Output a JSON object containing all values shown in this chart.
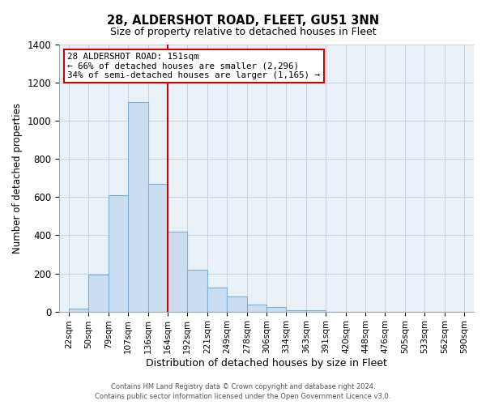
{
  "title": "28, ALDERSHOT ROAD, FLEET, GU51 3NN",
  "subtitle": "Size of property relative to detached houses in Fleet",
  "xlabel": "Distribution of detached houses by size in Fleet",
  "ylabel": "Number of detached properties",
  "bar_color": "#ccddf0",
  "bar_edge_color": "#7bafd4",
  "plot_bg_color": "#e8f0f8",
  "grid_color": "#c8d4e0",
  "bin_labels": [
    "22sqm",
    "50sqm",
    "79sqm",
    "107sqm",
    "136sqm",
    "164sqm",
    "192sqm",
    "221sqm",
    "249sqm",
    "278sqm",
    "306sqm",
    "334sqm",
    "363sqm",
    "391sqm",
    "420sqm",
    "448sqm",
    "476sqm",
    "505sqm",
    "533sqm",
    "562sqm",
    "590sqm"
  ],
  "bar_heights": [
    15,
    195,
    610,
    1100,
    670,
    420,
    220,
    125,
    80,
    35,
    25,
    5,
    5,
    0,
    0,
    0,
    0,
    0,
    0,
    0
  ],
  "ylim": [
    0,
    1400
  ],
  "yticks": [
    0,
    200,
    400,
    600,
    800,
    1000,
    1200,
    1400
  ],
  "vline_x_index": 5,
  "vline_color": "#cc0000",
  "annotation_title": "28 ALDERSHOT ROAD: 151sqm",
  "annotation_line1": "← 66% of detached houses are smaller (2,296)",
  "annotation_line2": "34% of semi-detached houses are larger (1,165) →",
  "annotation_box_color": "#cc0000",
  "footer1": "Contains HM Land Registry data © Crown copyright and database right 2024.",
  "footer2": "Contains public sector information licensed under the Open Government Licence v3.0.",
  "bin_edges": [
    22,
    50,
    79,
    107,
    136,
    164,
    192,
    221,
    249,
    278,
    306,
    334,
    363,
    391,
    420,
    448,
    476,
    505,
    533,
    562,
    590
  ]
}
